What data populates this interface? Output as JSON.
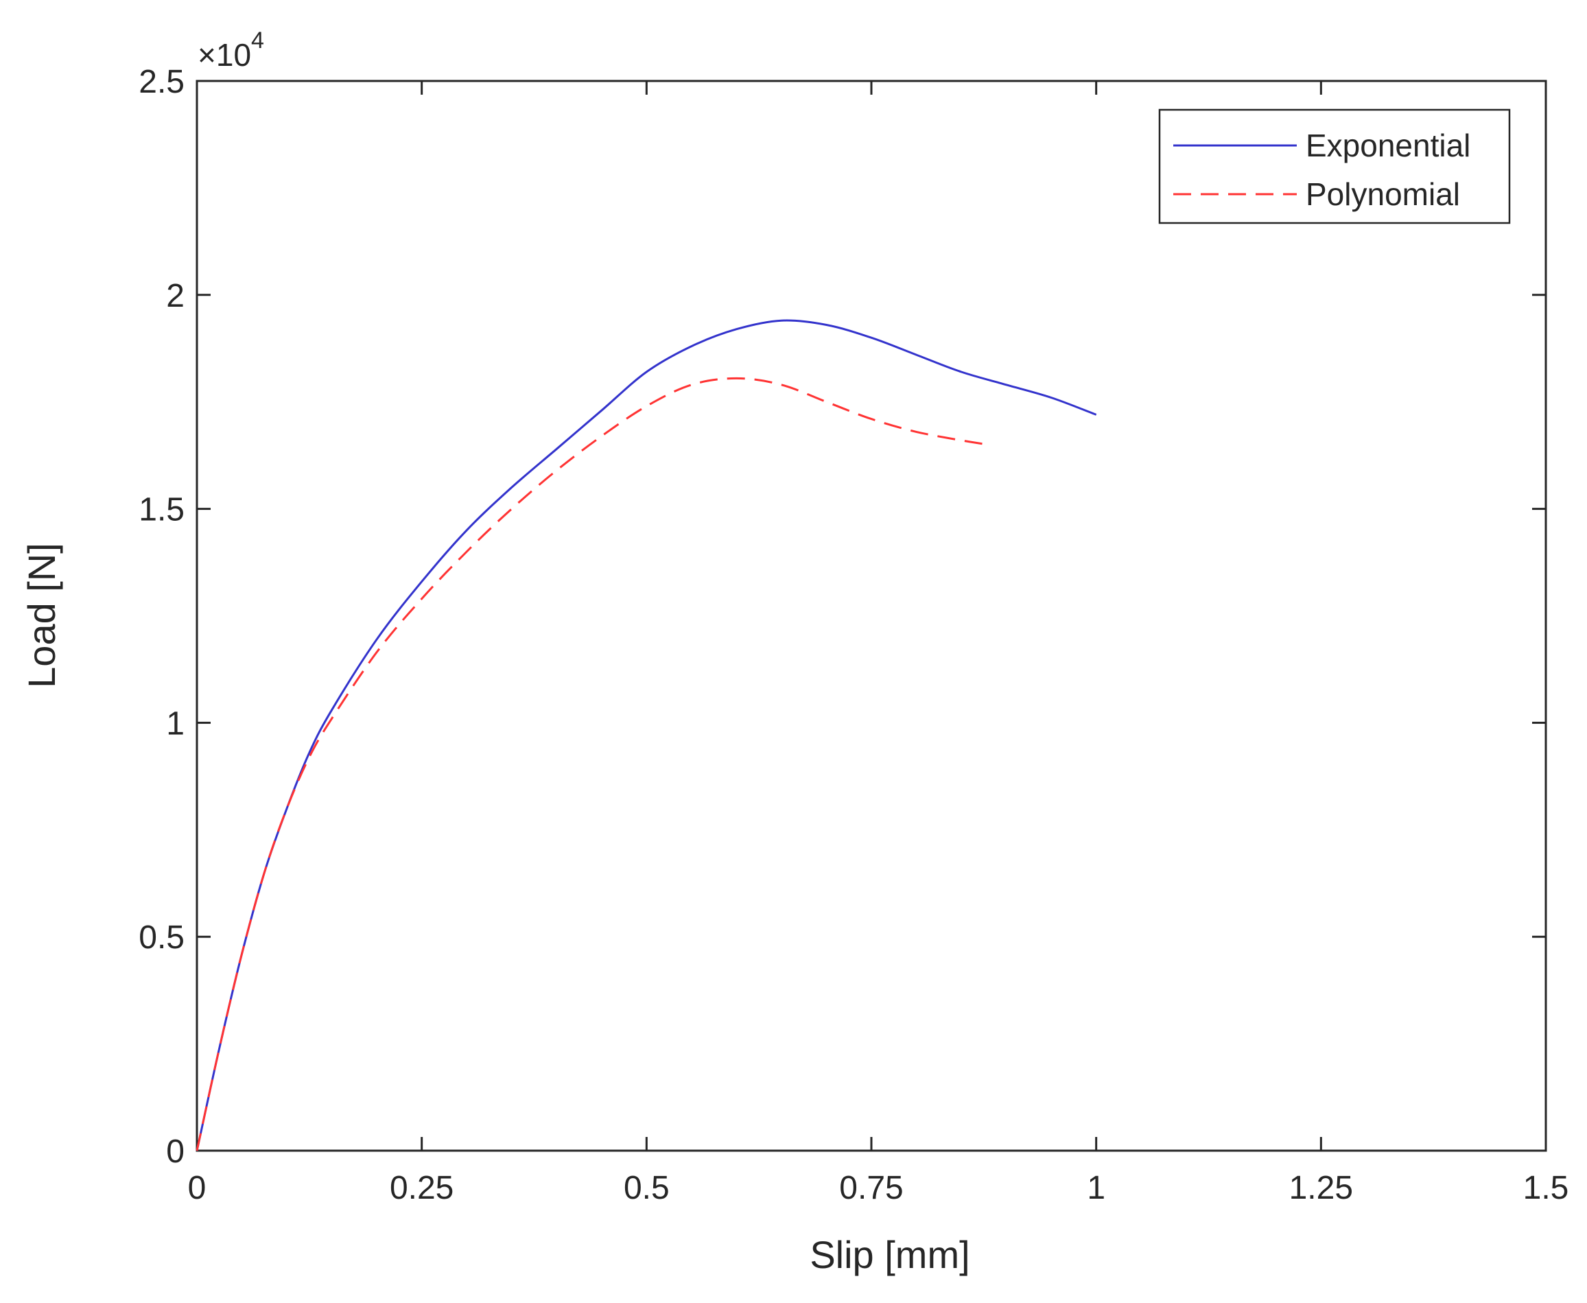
{
  "chart_data": {
    "type": "line",
    "xlabel": "Slip [mm]",
    "ylabel": "Load [N]",
    "xlim": [
      0,
      1.5
    ],
    "ylim": [
      0,
      25000
    ],
    "x_ticks": [
      0,
      0.25,
      0.5,
      0.75,
      1,
      1.25,
      1.5
    ],
    "x_tick_labels": [
      "0",
      "0.25",
      "0.5",
      "0.75",
      "1",
      "1.25",
      "1.5"
    ],
    "y_ticks": [
      0,
      5000,
      10000,
      15000,
      20000,
      25000
    ],
    "y_tick_labels": [
      "0",
      "0.5",
      "1",
      "1.5",
      "2",
      "2.5"
    ],
    "y_exponent": {
      "base": "×10",
      "power": "4"
    },
    "grid": false,
    "legend_position": "top-right",
    "series": [
      {
        "name": "Exponential",
        "color": "#3333cc",
        "style": "solid",
        "x": [
          0,
          0.025,
          0.05,
          0.075,
          0.1,
          0.125,
          0.15,
          0.2,
          0.25,
          0.3,
          0.35,
          0.4,
          0.45,
          0.5,
          0.55,
          0.6,
          0.65,
          0.7,
          0.75,
          0.8,
          0.85,
          0.9,
          0.95,
          1.0
        ],
        "y": [
          0,
          2400,
          4600,
          6500,
          8000,
          9300,
          10300,
          11950,
          13300,
          14500,
          15500,
          16400,
          17300,
          18200,
          18800,
          19200,
          19400,
          19300,
          19000,
          18600,
          18200,
          17900,
          17600,
          17200
        ]
      },
      {
        "name": "Polynomial",
        "color": "#ff3333",
        "style": "dashed",
        "x": [
          0,
          0.025,
          0.05,
          0.075,
          0.1,
          0.125,
          0.15,
          0.2,
          0.25,
          0.3,
          0.35,
          0.4,
          0.45,
          0.5,
          0.55,
          0.6,
          0.65,
          0.7,
          0.75,
          0.8,
          0.85,
          0.88
        ],
        "y": [
          0,
          2400,
          4600,
          6500,
          8000,
          9200,
          10100,
          11650,
          12900,
          14000,
          15000,
          15900,
          16700,
          17400,
          17900,
          18050,
          17900,
          17500,
          17100,
          16800,
          16600,
          16500
        ]
      }
    ]
  }
}
